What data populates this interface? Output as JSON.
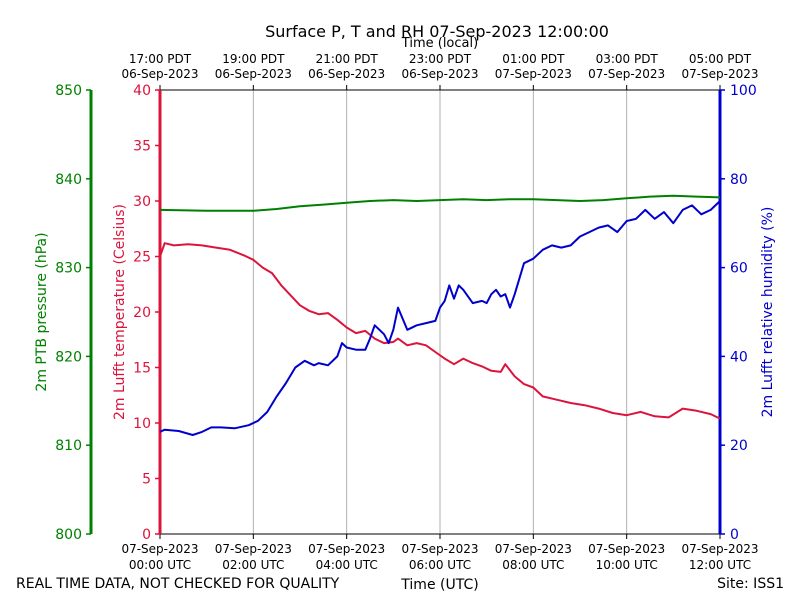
{
  "chart_data": {
    "type": "line",
    "title": "Surface P, T and RH 07-Sep-2023 12:00:00",
    "xlabel": "Time (UTC)",
    "xlabel_top": "Time (local)",
    "x_range_utc_hours": [
      0,
      12
    ],
    "x_ticks_bottom": [
      {
        "date": "07-Sep-2023",
        "time": "00:00 UTC"
      },
      {
        "date": "07-Sep-2023",
        "time": "02:00 UTC"
      },
      {
        "date": "07-Sep-2023",
        "time": "04:00 UTC"
      },
      {
        "date": "07-Sep-2023",
        "time": "06:00 UTC"
      },
      {
        "date": "07-Sep-2023",
        "time": "08:00 UTC"
      },
      {
        "date": "07-Sep-2023",
        "time": "10:00 UTC"
      },
      {
        "date": "07-Sep-2023",
        "time": "12:00 UTC"
      }
    ],
    "x_ticks_top": [
      {
        "time": "17:00 PDT",
        "date": "06-Sep-2023"
      },
      {
        "time": "19:00 PDT",
        "date": "06-Sep-2023"
      },
      {
        "time": "21:00 PDT",
        "date": "06-Sep-2023"
      },
      {
        "time": "23:00 PDT",
        "date": "06-Sep-2023"
      },
      {
        "time": "01:00 PDT",
        "date": "07-Sep-2023"
      },
      {
        "time": "03:00 PDT",
        "date": "07-Sep-2023"
      },
      {
        "time": "05:00 PDT",
        "date": "07-Sep-2023"
      }
    ],
    "grid": "vertical",
    "axes": {
      "pressure": {
        "label": "2m PTB pressure (hPa)",
        "range": [
          800,
          850
        ],
        "ticks": [
          800,
          810,
          820,
          830,
          840,
          850
        ],
        "color": "#008000"
      },
      "temperature": {
        "label": "2m Lufft temperature (Celsius)",
        "range": [
          0,
          40
        ],
        "ticks": [
          0,
          5,
          10,
          15,
          20,
          25,
          30,
          35,
          40
        ],
        "color": "#dc143c"
      },
      "humidity": {
        "label": "2m Lufft relative humidity (%)",
        "range": [
          0,
          100
        ],
        "ticks": [
          0,
          20,
          40,
          60,
          80,
          100
        ],
        "color": "#0000cd"
      }
    },
    "series": [
      {
        "axis": "pressure",
        "color": "#008000",
        "x": [
          0,
          1,
          2,
          2.5,
          3,
          3.5,
          4,
          4.5,
          5,
          5.5,
          6,
          6.5,
          7,
          7.5,
          8,
          8.5,
          9,
          9.5,
          10,
          10.5,
          11,
          11.5,
          12
        ],
        "y": [
          836.5,
          836.4,
          836.4,
          836.6,
          836.9,
          837.1,
          837.3,
          837.5,
          837.6,
          837.5,
          837.6,
          837.7,
          837.6,
          837.7,
          837.7,
          837.6,
          837.5,
          837.6,
          837.8,
          838.0,
          838.1,
          838.0,
          837.9
        ]
      },
      {
        "axis": "temperature",
        "color": "#dc143c",
        "x": [
          0,
          0.1,
          0.3,
          0.6,
          0.9,
          1.2,
          1.5,
          1.8,
          2.0,
          2.2,
          2.4,
          2.6,
          2.8,
          3.0,
          3.2,
          3.4,
          3.6,
          3.8,
          4.0,
          4.2,
          4.4,
          4.6,
          4.8,
          5.0,
          5.1,
          5.3,
          5.5,
          5.7,
          5.9,
          6.1,
          6.3,
          6.5,
          6.7,
          6.9,
          7.1,
          7.3,
          7.4,
          7.6,
          7.8,
          8.0,
          8.2,
          8.5,
          8.8,
          9.1,
          9.4,
          9.7,
          10.0,
          10.3,
          10.6,
          10.9,
          11.2,
          11.5,
          11.8,
          12.0
        ],
        "y": [
          25.0,
          26.2,
          26.0,
          26.1,
          26.0,
          25.8,
          25.6,
          25.1,
          24.7,
          24.0,
          23.5,
          22.4,
          21.5,
          20.6,
          20.1,
          19.8,
          19.9,
          19.3,
          18.6,
          18.1,
          18.3,
          17.6,
          17.2,
          17.3,
          17.6,
          17.0,
          17.2,
          17.0,
          16.4,
          15.8,
          15.3,
          15.8,
          15.4,
          15.1,
          14.7,
          14.6,
          15.3,
          14.2,
          13.5,
          13.2,
          12.4,
          12.1,
          11.8,
          11.6,
          11.3,
          10.9,
          10.7,
          11.0,
          10.6,
          10.5,
          11.3,
          11.1,
          10.8,
          10.4
        ]
      },
      {
        "axis": "humidity",
        "color": "#0000cd",
        "x": [
          0,
          0.1,
          0.4,
          0.7,
          0.9,
          1.1,
          1.3,
          1.6,
          1.9,
          2.1,
          2.3,
          2.5,
          2.7,
          2.9,
          3.1,
          3.3,
          3.4,
          3.6,
          3.8,
          3.9,
          4.0,
          4.2,
          4.4,
          4.5,
          4.6,
          4.8,
          4.9,
          5.0,
          5.1,
          5.3,
          5.5,
          5.7,
          5.9,
          6.0,
          6.1,
          6.2,
          6.3,
          6.4,
          6.5,
          6.7,
          6.9,
          7.0,
          7.1,
          7.2,
          7.3,
          7.4,
          7.5,
          7.6,
          7.8,
          8.0,
          8.2,
          8.4,
          8.6,
          8.8,
          9.0,
          9.2,
          9.4,
          9.6,
          9.8,
          10.0,
          10.2,
          10.4,
          10.6,
          10.8,
          11.0,
          11.2,
          11.4,
          11.6,
          11.8,
          12.0
        ],
        "y": [
          23.0,
          23.5,
          23.2,
          22.3,
          23.0,
          24.0,
          24.0,
          23.8,
          24.5,
          25.5,
          27.5,
          31.0,
          34.0,
          37.5,
          39.0,
          38.0,
          38.5,
          38.0,
          40.0,
          43.0,
          42.0,
          41.5,
          41.5,
          44.0,
          47.0,
          45.0,
          43.0,
          46.0,
          51.0,
          46.0,
          47.0,
          47.5,
          48.0,
          51.0,
          52.5,
          56.0,
          53.0,
          56.0,
          55.0,
          52.0,
          52.5,
          52.0,
          54.0,
          55.0,
          53.5,
          54.0,
          51.0,
          54.0,
          61.0,
          62.0,
          64.0,
          65.0,
          64.5,
          65.0,
          67.0,
          68.0,
          69.0,
          69.5,
          68.0,
          70.5,
          71.0,
          73.0,
          71.0,
          72.5,
          70.0,
          73.0,
          74.0,
          72.0,
          73.0,
          75.0
        ]
      }
    ]
  },
  "footer": {
    "left": "REAL TIME DATA, NOT CHECKED FOR QUALITY",
    "right": "Site: ISS1"
  }
}
